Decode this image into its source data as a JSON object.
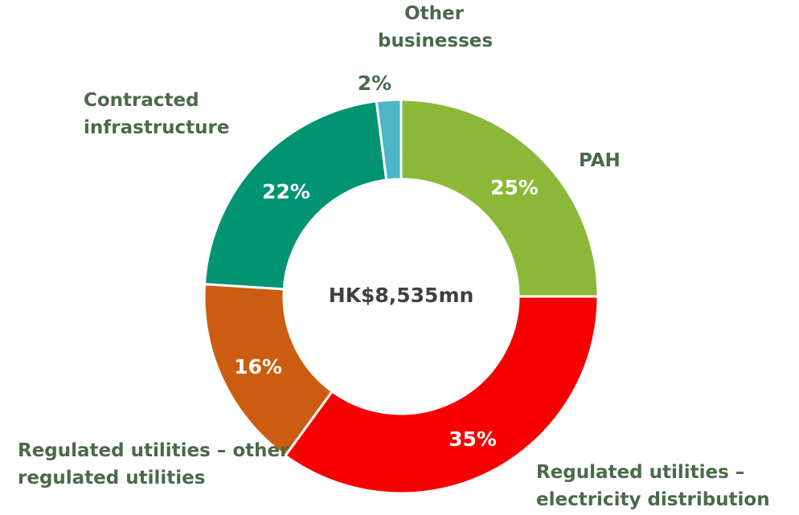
{
  "chart_data": {
    "type": "pie",
    "center_label": "HK$8,535mn",
    "categories": [
      "PAH",
      "Regulated utilities – electricity distribution",
      "Regulated utilities – other regulated utilities",
      "Contracted infrastructure",
      "Other businesses"
    ],
    "values": [
      25,
      35,
      16,
      22,
      2
    ],
    "value_labels": [
      "25%",
      "35%",
      "16%",
      "22%",
      "2%"
    ],
    "colors": [
      "#8cb83a",
      "#f70000",
      "#cc5d10",
      "#009473",
      "#4bb6c5"
    ]
  }
}
